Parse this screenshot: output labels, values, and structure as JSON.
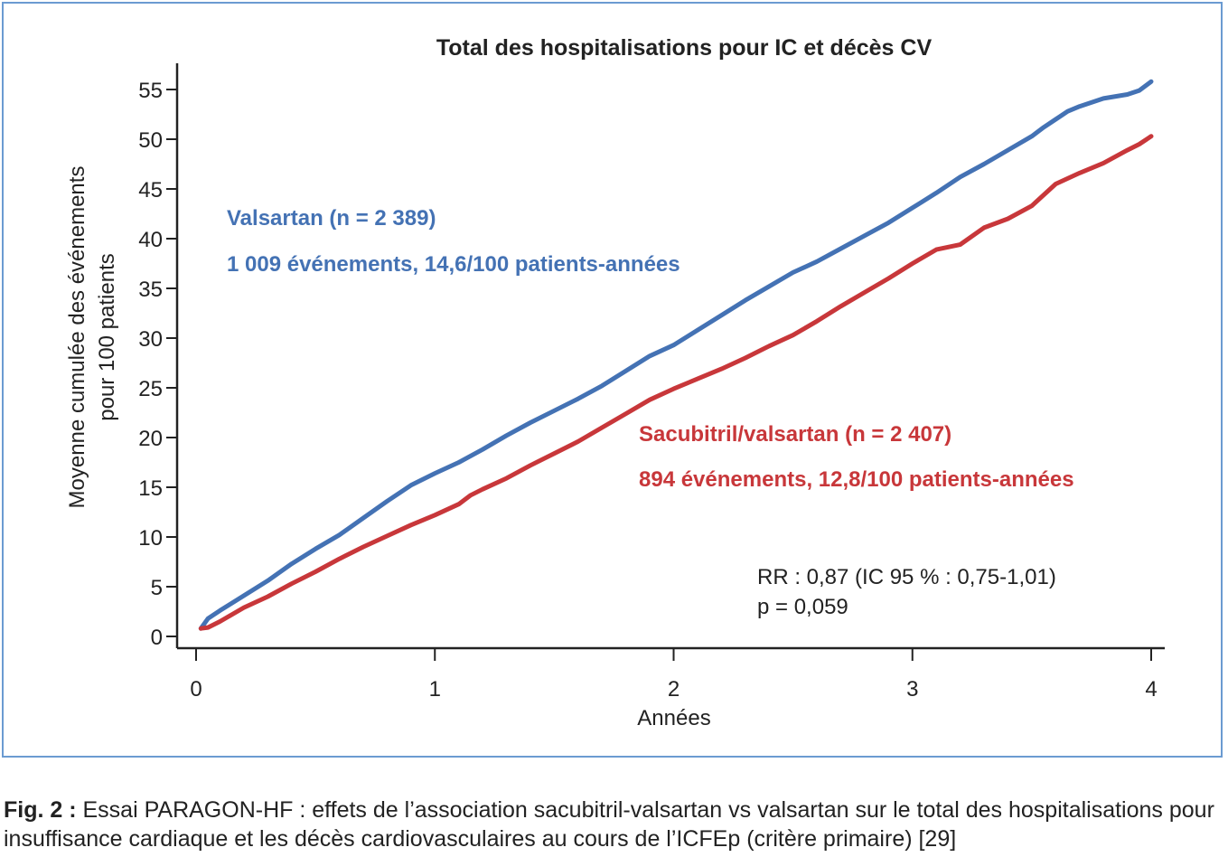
{
  "chart_data": {
    "type": "line",
    "title": "Total des hospitalisations pour IC et décès CV",
    "xlabel": "Années",
    "ylabel": [
      "Moyenne cumulée des événements",
      "pour 100 patients"
    ],
    "xlim": [
      0,
      4
    ],
    "ylim": [
      0,
      55
    ],
    "xticks": [
      0,
      1,
      2,
      3,
      4
    ],
    "yticks": [
      0,
      5,
      10,
      15,
      20,
      25,
      30,
      35,
      40,
      45,
      50,
      55
    ],
    "grid": false,
    "series": [
      {
        "name": "Valsartan (n = 2 389)",
        "subtitle": "1 009 événements, 14,6/100 patients-années",
        "color": "#4472b4",
        "x": [
          0.02,
          0.05,
          0.1,
          0.2,
          0.3,
          0.4,
          0.5,
          0.6,
          0.7,
          0.8,
          0.9,
          1.0,
          1.1,
          1.2,
          1.3,
          1.4,
          1.5,
          1.6,
          1.7,
          1.8,
          1.9,
          2.0,
          2.1,
          2.2,
          2.3,
          2.4,
          2.5,
          2.6,
          2.7,
          2.8,
          2.9,
          3.0,
          3.1,
          3.2,
          3.3,
          3.4,
          3.5,
          3.55,
          3.6,
          3.65,
          3.7,
          3.8,
          3.9,
          3.95,
          4.0
        ],
        "y": [
          0.8,
          1.8,
          2.6,
          4.1,
          5.6,
          7.3,
          8.8,
          10.2,
          11.9,
          13.6,
          15.2,
          16.4,
          17.5,
          18.8,
          20.2,
          21.5,
          22.7,
          23.9,
          25.2,
          26.7,
          28.2,
          29.3,
          30.8,
          32.3,
          33.8,
          35.2,
          36.6,
          37.7,
          39.0,
          40.3,
          41.6,
          43.1,
          44.6,
          46.2,
          47.5,
          48.9,
          50.3,
          51.2,
          52.0,
          52.8,
          53.3,
          54.1,
          54.5,
          54.9,
          55.8
        ]
      },
      {
        "name": "Sacubitril/valsartan (n = 2 407)",
        "subtitle": "894 événements, 12,8/100 patients-années",
        "color": "#c8373a",
        "x": [
          0.02,
          0.05,
          0.1,
          0.2,
          0.3,
          0.4,
          0.5,
          0.6,
          0.7,
          0.8,
          0.9,
          1.0,
          1.1,
          1.15,
          1.2,
          1.3,
          1.4,
          1.5,
          1.6,
          1.7,
          1.8,
          1.9,
          2.0,
          2.1,
          2.2,
          2.3,
          2.4,
          2.5,
          2.6,
          2.7,
          2.8,
          2.9,
          3.0,
          3.1,
          3.2,
          3.3,
          3.4,
          3.5,
          3.6,
          3.7,
          3.8,
          3.9,
          3.95,
          4.0
        ],
        "y": [
          0.8,
          0.9,
          1.5,
          2.9,
          4.0,
          5.3,
          6.5,
          7.8,
          9.0,
          10.1,
          11.2,
          12.2,
          13.3,
          14.2,
          14.8,
          15.9,
          17.2,
          18.4,
          19.6,
          21.0,
          22.4,
          23.8,
          24.9,
          25.9,
          26.9,
          28.0,
          29.2,
          30.3,
          31.7,
          33.2,
          34.6,
          36.0,
          37.5,
          38.9,
          39.4,
          41.1,
          42.0,
          43.3,
          45.5,
          46.6,
          47.6,
          48.9,
          49.5,
          50.3
        ]
      }
    ],
    "annotation": [
      "RR : 0,87 (IC 95 % : 0,75-1,01)",
      "p = 0,059"
    ]
  },
  "caption": {
    "label": "Fig. 2 :",
    "text": " Essai PARAGON-HF : effets de l’association sacubitril-valsartan vs valsartan sur le total des hospitalisations pour insuffisance cardiaque et les décès cardiovasculaires au cours de l’ICFEp (critère primaire) [29]"
  }
}
